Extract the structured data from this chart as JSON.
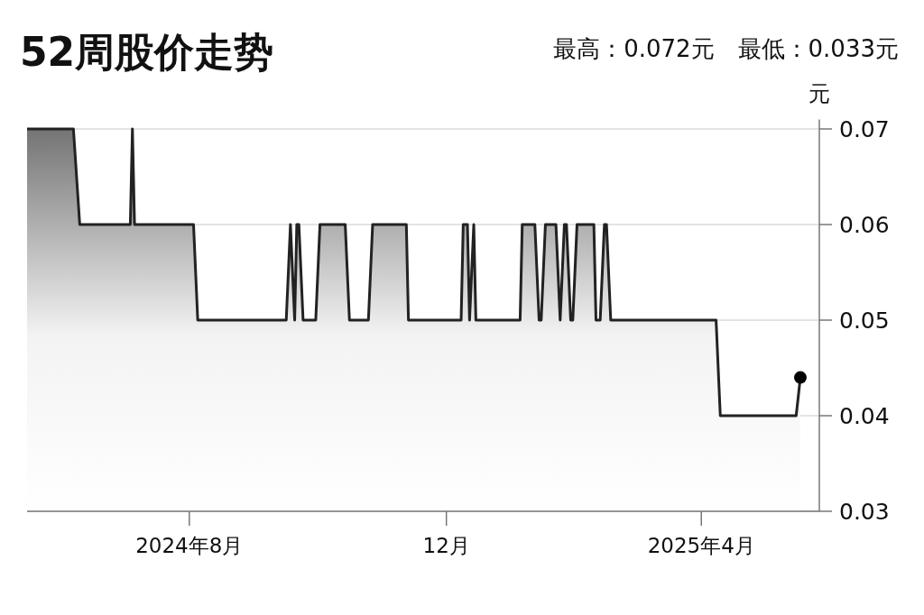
{
  "chart_data": {
    "type": "area",
    "title": "52周股价走势",
    "subtitle": "最高：0.072元　最低：0.033元",
    "ylabel": "元",
    "xlim": [
      "2024-05-16",
      "2025-05-27"
    ],
    "xticks": [
      {
        "value": "2024-08",
        "label": "2024年8月"
      },
      {
        "value": "2024-12",
        "label": "12月"
      },
      {
        "value": "2025-04",
        "label": "2025年4月"
      }
    ],
    "ylim": [
      0.03,
      0.071
    ],
    "yticks": [
      0.03,
      0.04,
      0.05,
      0.06,
      0.07
    ],
    "grid": "y",
    "series": [
      {
        "color": "#222222",
        "x": [
          "2024-05-16",
          "2024-06-07",
          "2024-06-10",
          "2024-07-04",
          "2024-07-05",
          "2024-07-06",
          "2024-08-03",
          "2024-08-05",
          "2024-09-16",
          "2024-09-18",
          "2024-09-20",
          "2024-09-21",
          "2024-09-22",
          "2024-09-24",
          "2024-09-30",
          "2024-10-02",
          "2024-10-14",
          "2024-10-16",
          "2024-10-25",
          "2024-10-27",
          "2024-11-12",
          "2024-11-13",
          "2024-12-08",
          "2024-12-09",
          "2024-12-11",
          "2024-12-12",
          "2024-12-14",
          "2024-12-15",
          "2025-01-05",
          "2025-01-06",
          "2025-01-12",
          "2025-01-14",
          "2025-01-15",
          "2025-01-17",
          "2025-01-22",
          "2025-01-24",
          "2025-01-26",
          "2025-01-27",
          "2025-01-29",
          "2025-01-30",
          "2025-02-01",
          "2025-02-09",
          "2025-02-10",
          "2025-02-12",
          "2025-02-14",
          "2025-02-15",
          "2025-02-17",
          "2025-04-08",
          "2025-04-10",
          "2025-05-16",
          "2025-05-18"
        ],
        "values": [
          0.07,
          0.07,
          0.06,
          0.06,
          0.07,
          0.06,
          0.06,
          0.05,
          0.05,
          0.06,
          0.05,
          0.06,
          0.06,
          0.05,
          0.05,
          0.06,
          0.06,
          0.05,
          0.05,
          0.06,
          0.06,
          0.05,
          0.05,
          0.06,
          0.06,
          0.05,
          0.06,
          0.05,
          0.05,
          0.06,
          0.06,
          0.05,
          0.05,
          0.06,
          0.06,
          0.05,
          0.06,
          0.06,
          0.05,
          0.05,
          0.06,
          0.06,
          0.05,
          0.05,
          0.06,
          0.06,
          0.05,
          0.05,
          0.04,
          0.04,
          0.044
        ]
      },
      {
        "type": "scatter",
        "color": "#000000",
        "marker": "circle",
        "x": [
          "2025-05-18"
        ],
        "values": [
          0.044
        ]
      }
    ]
  }
}
